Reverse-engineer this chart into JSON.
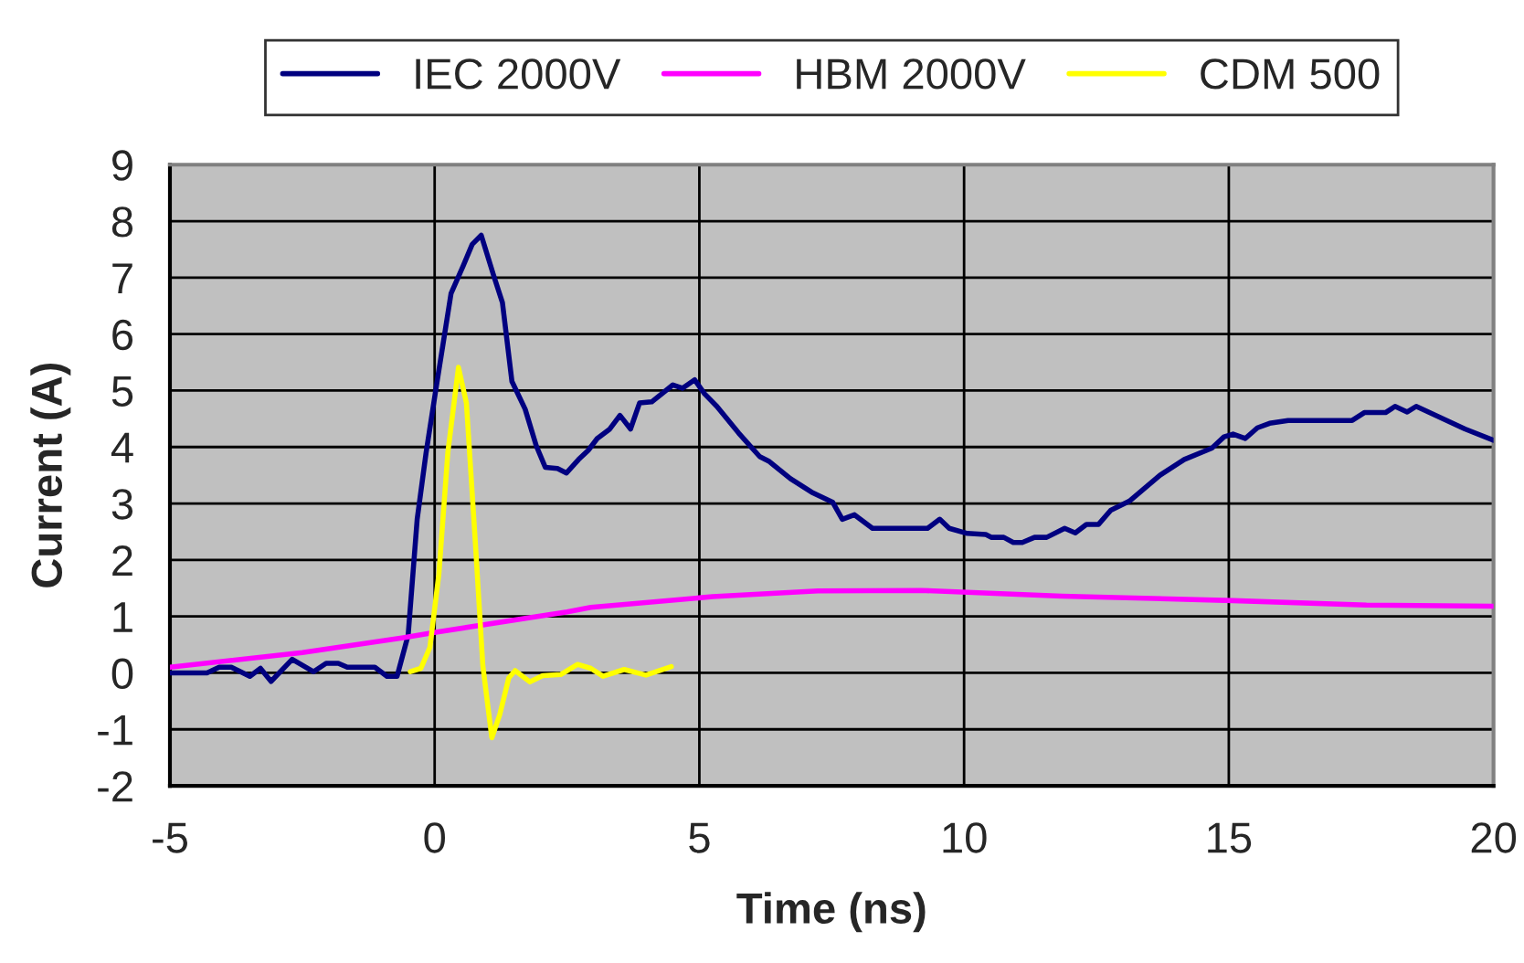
{
  "chart_data": {
    "type": "line",
    "xlabel": "Time (ns)",
    "ylabel": "Current (A)",
    "xlim": [
      -5,
      20
    ],
    "xticks": [
      -5,
      0,
      5,
      10,
      15,
      20
    ],
    "ylim": [
      -2,
      9
    ],
    "yticks": [
      -2,
      -1,
      0,
      1,
      2,
      3,
      4,
      5,
      6,
      7,
      8,
      9
    ],
    "grid": true,
    "legend": "top",
    "marker": "none",
    "line_style": "solid",
    "series": [
      {
        "name": "IEC 2000V",
        "color": "#000080",
        "x": [
          -5,
          -4.3,
          -4.07,
          -3.84,
          -3.49,
          -3.29,
          -3.09,
          -2.69,
          -2.29,
          -2.05,
          -1.82,
          -1.65,
          -1.13,
          -0.9,
          -0.71,
          -0.5,
          -0.33,
          -0.16,
          0.02,
          0.31,
          0.54,
          0.71,
          0.88,
          1.11,
          1.28,
          1.46,
          1.71,
          1.92,
          2.09,
          2.32,
          2.49,
          2.72,
          2.9,
          3.07,
          3.3,
          3.5,
          3.7,
          3.87,
          4.1,
          4.5,
          4.68,
          4.91,
          5.1,
          5.33,
          5.74,
          6.14,
          6.31,
          6.72,
          7.12,
          7.52,
          7.7,
          7.93,
          8.27,
          9.31,
          9.54,
          9.72,
          10.06,
          10.41,
          10.52,
          10.75,
          10.93,
          11.1,
          11.33,
          11.56,
          11.9,
          12.1,
          12.31,
          12.54,
          12.77,
          13.12,
          13.7,
          14.16,
          14.68,
          14.91,
          15.08,
          15.31,
          15.54,
          15.77,
          16.12,
          17.33,
          17.56,
          17.96,
          18.14,
          18.37,
          18.54,
          19.46,
          20
        ],
        "values": [
          0,
          0,
          0.1,
          0.1,
          -0.06,
          0.08,
          -0.15,
          0.24,
          0.02,
          0.17,
          0.17,
          0.1,
          0.1,
          -0.06,
          -0.06,
          0.67,
          2.72,
          3.91,
          5.0,
          6.72,
          7.21,
          7.59,
          7.75,
          7.05,
          6.56,
          5.16,
          4.67,
          4.02,
          3.64,
          3.62,
          3.54,
          3.78,
          3.94,
          4.15,
          4.31,
          4.56,
          4.32,
          4.78,
          4.8,
          5.1,
          5.04,
          5.19,
          4.94,
          4.72,
          4.25,
          3.83,
          3.75,
          3.44,
          3.2,
          3.02,
          2.72,
          2.8,
          2.56,
          2.56,
          2.72,
          2.56,
          2.47,
          2.45,
          2.4,
          2.4,
          2.31,
          2.31,
          2.4,
          2.4,
          2.56,
          2.48,
          2.63,
          2.63,
          2.88,
          3.04,
          3.5,
          3.78,
          3.98,
          4.18,
          4.23,
          4.15,
          4.34,
          4.42,
          4.47,
          4.47,
          4.61,
          4.61,
          4.72,
          4.62,
          4.72,
          4.32,
          4.12
        ]
      },
      {
        "name": "HBM 2000V",
        "color": "#ff00ff",
        "x": [
          -5,
          -2.5,
          -0.62,
          0.02,
          2.5,
          2.95,
          5.25,
          7.24,
          9.2,
          11.85,
          15.08,
          17.6,
          20
        ],
        "values": [
          0.1,
          0.36,
          0.62,
          0.72,
          1.08,
          1.16,
          1.35,
          1.45,
          1.46,
          1.36,
          1.28,
          1.2,
          1.18
        ]
      },
      {
        "name": "CDM 500",
        "color": "#ffff00",
        "x": [
          -0.46,
          -0.26,
          -0.09,
          0.08,
          0.25,
          0.45,
          0.6,
          0.77,
          0.91,
          1.08,
          1.23,
          1.4,
          1.52,
          1.8,
          2.04,
          2.38,
          2.7,
          2.95,
          3.18,
          3.58,
          3.99,
          4.47
        ],
        "values": [
          0.02,
          0.08,
          0.45,
          1.75,
          3.91,
          5.41,
          4.78,
          2.29,
          0.13,
          -1.15,
          -0.74,
          -0.09,
          0.04,
          -0.16,
          -0.05,
          -0.03,
          0.15,
          0.08,
          -0.06,
          0.06,
          -0.04,
          0.11
        ]
      }
    ]
  }
}
